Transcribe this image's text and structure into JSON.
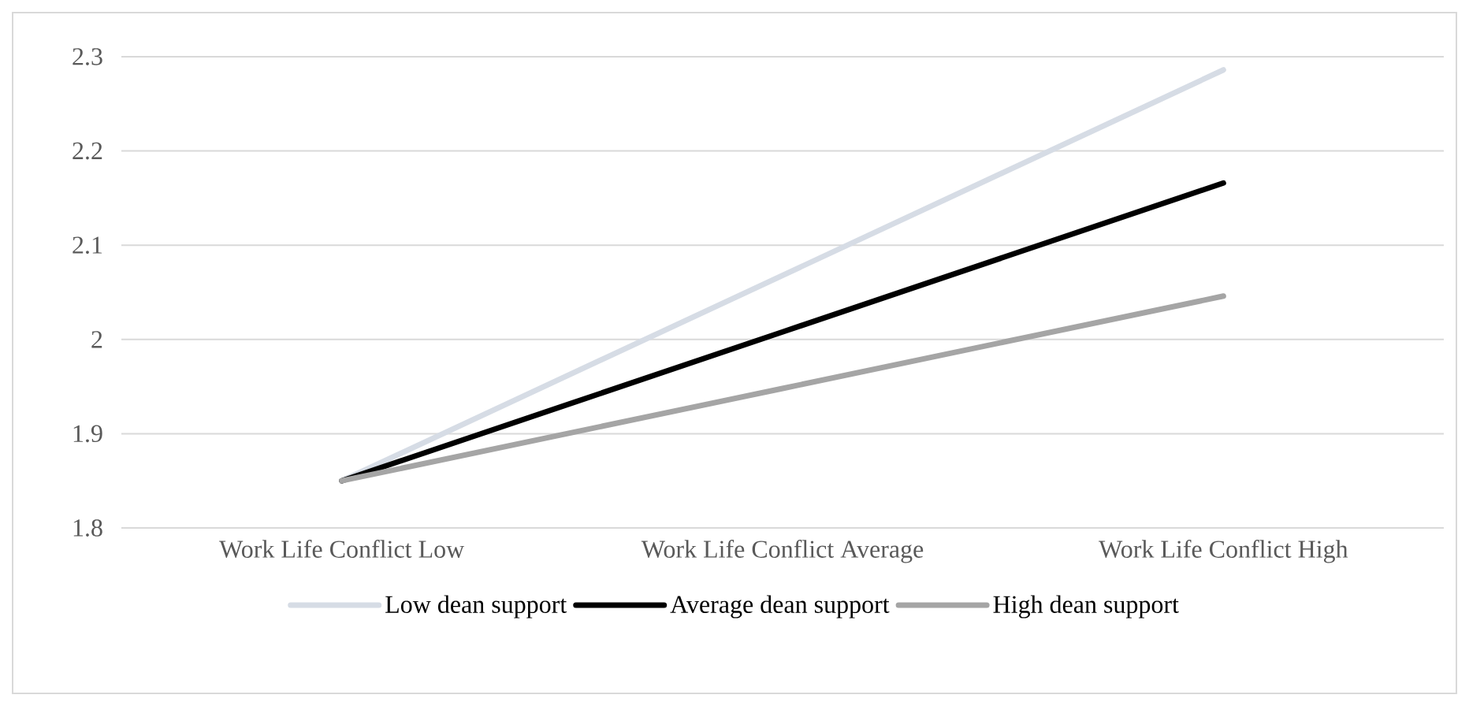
{
  "chart_data": {
    "type": "line",
    "categories": [
      "Work Life Conflict Low",
      "Work Life Conflict Average",
      "Work Life Conflict High"
    ],
    "series": [
      {
        "name": "Low dean support",
        "color": "#d6dce5",
        "values": [
          1.85,
          2.068,
          2.286
        ]
      },
      {
        "name": "Average dean support",
        "color": "#000000",
        "values": [
          1.85,
          2.008,
          2.166
        ]
      },
      {
        "name": "High dean support",
        "color": "#a5a5a5",
        "values": [
          1.85,
          1.948,
          2.046
        ]
      }
    ],
    "ylim": [
      1.8,
      2.3
    ],
    "yticks": [
      1.8,
      1.9,
      2,
      2.1,
      2.2,
      2.3
    ],
    "grid": "y",
    "legend": "bottom",
    "line_style": "solid"
  }
}
